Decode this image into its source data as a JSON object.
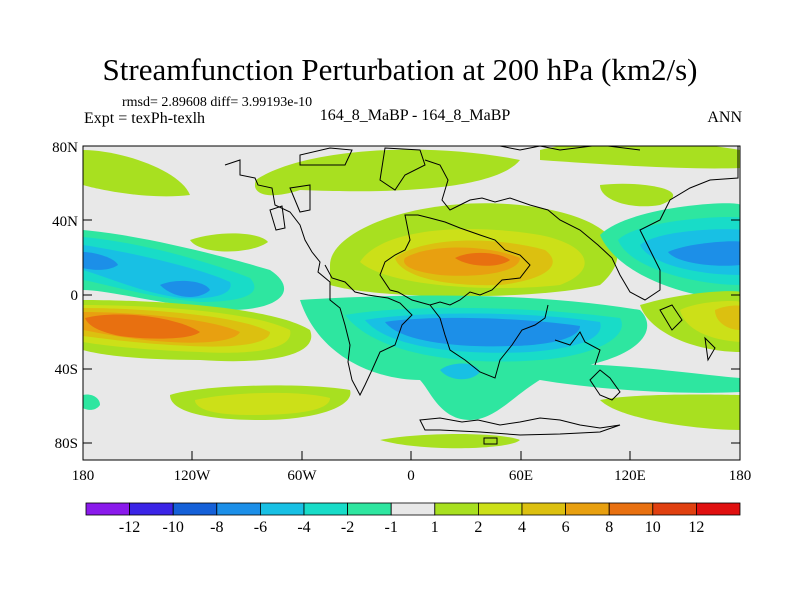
{
  "title": "Streamfunction Perturbation at 200 hPa (km2/s)",
  "stats_text": "rmsd= 2.89608 diff= 3.99193e-10",
  "experiment_text": "Expt = texPh-texlh",
  "center_text": "164_8_MaBP - 164_8_MaBP",
  "season_text": "ANN",
  "lat_labels": [
    "80N",
    "40N",
    "0",
    "40S",
    "80S"
  ],
  "lon_labels": [
    "180",
    "120W",
    "60W",
    "0",
    "60E",
    "120E",
    "180"
  ],
  "colorbar": {
    "colors": [
      "#8a1aeb",
      "#3b24e6",
      "#1560d8",
      "#1c8fe8",
      "#18c0e4",
      "#18dcc8",
      "#2ee6a0",
      "#e8e8e8",
      "#a8e020",
      "#cce018",
      "#dcc010",
      "#e8a010",
      "#e87010",
      "#e04010",
      "#e01010"
    ],
    "labels": [
      "-12",
      "-10",
      "-8",
      "-6",
      "-4",
      "-2",
      "-1",
      "1",
      "2",
      "4",
      "6",
      "8",
      "10",
      "12"
    ]
  },
  "map_colors": {
    "background": "#e8e8e8",
    "c_neg1": "#2ee6a0",
    "c_neg2": "#18dcc8",
    "c_neg4": "#18c0e4",
    "c_neg6": "#1c8fe8",
    "c_pos1": "#a8e020",
    "c_pos2": "#cce018",
    "c_pos4": "#dcc010",
    "c_pos6": "#e8a010",
    "c_pos8": "#e87010",
    "c_pos10": "#e04010"
  }
}
